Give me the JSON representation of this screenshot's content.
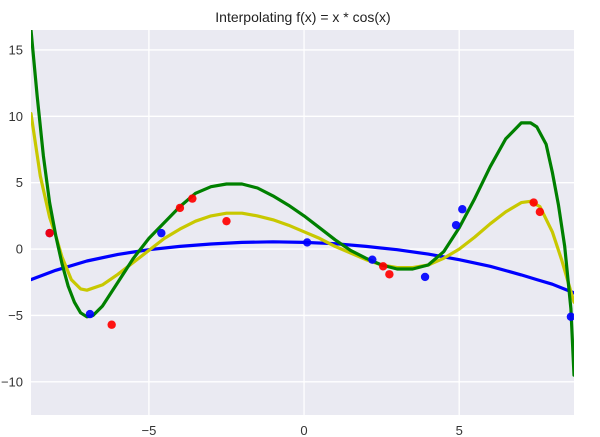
{
  "chart_data": {
    "type": "line",
    "title": "Interpolating f(x) = x * cos(x)",
    "xlabel": "",
    "ylabel": "",
    "xlim": [
      -8.8,
      8.7
    ],
    "ylim": [
      -12.5,
      16.5
    ],
    "xticks": [
      -5,
      0,
      5
    ],
    "yticks": [
      -10,
      -5,
      0,
      5,
      10,
      15
    ],
    "xtick_labels": [
      "−5",
      "0",
      "5"
    ],
    "ytick_labels": [
      "−10",
      "−5",
      "0",
      "5",
      "10",
      "15"
    ],
    "grid": true,
    "background": "#eaeaf2",
    "series": [
      {
        "kind": "line",
        "color": "#0000ff",
        "x": [
          -8.8,
          -8.0,
          -7.0,
          -6.0,
          -5.0,
          -4.0,
          -3.0,
          -2.0,
          -1.0,
          0.0,
          1.0,
          2.0,
          3.0,
          4.0,
          5.0,
          6.0,
          7.0,
          7.5,
          8.0,
          8.7
        ],
        "y": [
          -2.3,
          -1.6,
          -0.9,
          -0.4,
          -0.05,
          0.2,
          0.38,
          0.5,
          0.55,
          0.5,
          0.4,
          0.2,
          -0.05,
          -0.38,
          -0.8,
          -1.3,
          -1.95,
          -2.3,
          -2.65,
          -3.3
        ]
      },
      {
        "kind": "line",
        "color": "#c8c800",
        "x": [
          -8.8,
          -8.5,
          -8.2,
          -8.0,
          -7.8,
          -7.5,
          -7.2,
          -7.0,
          -6.5,
          -6.0,
          -5.5,
          -5.0,
          -4.5,
          -4.0,
          -3.5,
          -3.0,
          -2.5,
          -2.0,
          -1.5,
          -1.0,
          -0.5,
          0.0,
          0.5,
          1.0,
          1.5,
          2.0,
          2.5,
          3.0,
          3.5,
          4.0,
          4.5,
          5.0,
          5.5,
          6.0,
          6.5,
          7.0,
          7.3,
          7.6,
          8.0,
          8.3,
          8.7
        ],
        "y": [
          10.2,
          5.5,
          2.4,
          1.0,
          -0.6,
          -2.3,
          -3.0,
          -3.1,
          -2.7,
          -1.9,
          -1.0,
          -0.1,
          0.8,
          1.5,
          2.1,
          2.5,
          2.7,
          2.7,
          2.5,
          2.2,
          1.8,
          1.3,
          0.8,
          0.2,
          -0.3,
          -0.8,
          -1.2,
          -1.4,
          -1.4,
          -1.2,
          -0.7,
          0.0,
          0.9,
          1.9,
          2.8,
          3.5,
          3.6,
          3.2,
          1.3,
          -0.8,
          -4.0
        ]
      },
      {
        "kind": "line",
        "color": "#008000",
        "x": [
          -8.8,
          -8.6,
          -8.4,
          -8.2,
          -8.0,
          -7.8,
          -7.6,
          -7.4,
          -7.2,
          -7.0,
          -6.8,
          -6.5,
          -6.0,
          -5.5,
          -5.0,
          -4.5,
          -4.0,
          -3.5,
          -3.0,
          -2.5,
          -2.0,
          -1.5,
          -1.0,
          -0.5,
          0.0,
          0.5,
          1.0,
          1.5,
          2.0,
          2.5,
          3.0,
          3.5,
          4.0,
          4.5,
          5.0,
          5.5,
          6.0,
          6.5,
          7.0,
          7.3,
          7.5,
          7.8,
          8.0,
          8.2,
          8.4,
          8.6,
          8.7
        ],
        "y": [
          16.5,
          11.5,
          7.0,
          3.5,
          1.0,
          -1.1,
          -2.8,
          -4.0,
          -4.8,
          -5.1,
          -5.0,
          -4.3,
          -2.5,
          -0.7,
          0.8,
          2.0,
          3.2,
          4.2,
          4.7,
          4.9,
          4.9,
          4.6,
          4.0,
          3.3,
          2.5,
          1.6,
          0.7,
          -0.1,
          -0.7,
          -1.2,
          -1.5,
          -1.5,
          -1.2,
          -0.2,
          1.6,
          3.8,
          6.2,
          8.3,
          9.5,
          9.5,
          9.2,
          7.9,
          5.8,
          3.3,
          0.2,
          -4.5,
          -9.5
        ]
      }
    ],
    "points": [
      {
        "x": -8.2,
        "y": 1.2,
        "color": "#0000ff"
      },
      {
        "x": -6.9,
        "y": -4.9,
        "color": "#0000ff"
      },
      {
        "x": -4.6,
        "y": 1.2,
        "color": "#0000ff"
      },
      {
        "x": 0.1,
        "y": 0.5,
        "color": "#0000ff"
      },
      {
        "x": 2.2,
        "y": -0.8,
        "color": "#0000ff"
      },
      {
        "x": 3.9,
        "y": -2.1,
        "color": "#0000ff"
      },
      {
        "x": 4.9,
        "y": 1.8,
        "color": "#0000ff"
      },
      {
        "x": 5.1,
        "y": 3.0,
        "color": "#0000ff"
      },
      {
        "x": 8.6,
        "y": -5.1,
        "color": "#0000ff"
      },
      {
        "x": -8.2,
        "y": 1.2,
        "color": "#ff0000"
      },
      {
        "x": -6.2,
        "y": -5.7,
        "color": "#ff0000"
      },
      {
        "x": -4.0,
        "y": 3.1,
        "color": "#ff0000"
      },
      {
        "x": -3.6,
        "y": 3.8,
        "color": "#ff0000"
      },
      {
        "x": -2.5,
        "y": 2.1,
        "color": "#ff0000"
      },
      {
        "x": 2.55,
        "y": -1.3,
        "color": "#ff0000"
      },
      {
        "x": 2.75,
        "y": -1.9,
        "color": "#ff0000"
      },
      {
        "x": 7.4,
        "y": 3.5,
        "color": "#ff0000"
      },
      {
        "x": 7.6,
        "y": 2.8,
        "color": "#ff0000"
      }
    ]
  }
}
